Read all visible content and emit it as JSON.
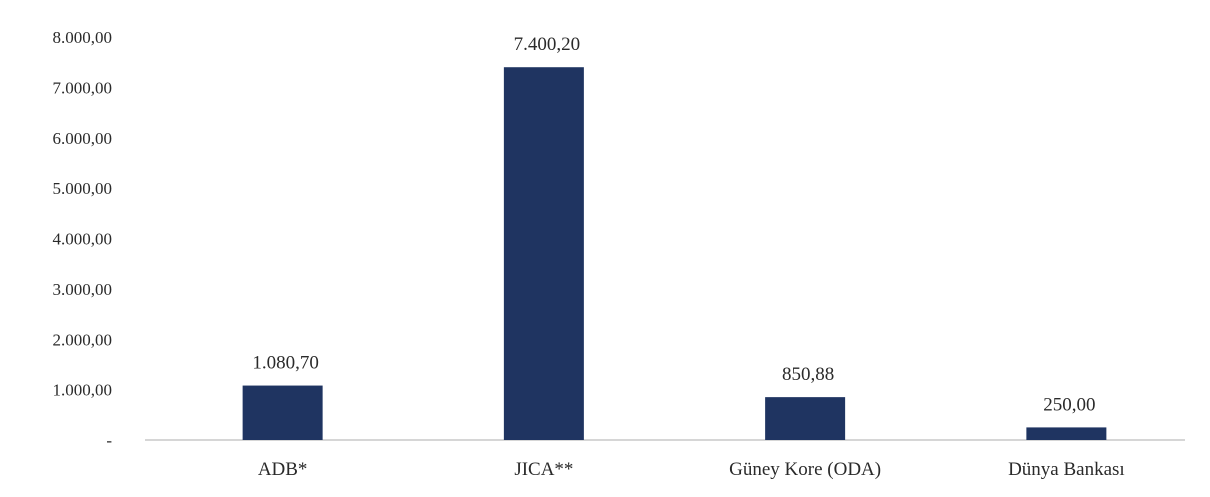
{
  "chart_data": {
    "type": "bar",
    "categories": [
      "ADB*",
      "JICA**",
      "Güney Kore (ODA)",
      "Dünya Bankası"
    ],
    "values": [
      1080.7,
      7400.2,
      850.88,
      250.0
    ],
    "value_labels": [
      "1.080,70",
      "7.400,20",
      "850,88",
      "250,00"
    ],
    "y_ticks": [
      0,
      1000,
      2000,
      3000,
      4000,
      5000,
      6000,
      7000,
      8000
    ],
    "y_tick_labels": [
      "-",
      "1.000,00",
      "2.000,00",
      "3.000,00",
      "4.000,00",
      "5.000,00",
      "6.000,00",
      "7.000,00",
      "8.000,00"
    ],
    "ylim": [
      0,
      8000
    ],
    "title": "",
    "xlabel": "",
    "ylabel": "",
    "grid": false,
    "legend": "none",
    "bar_color": "#1f3461",
    "axis_color": "#c8c8c8"
  }
}
